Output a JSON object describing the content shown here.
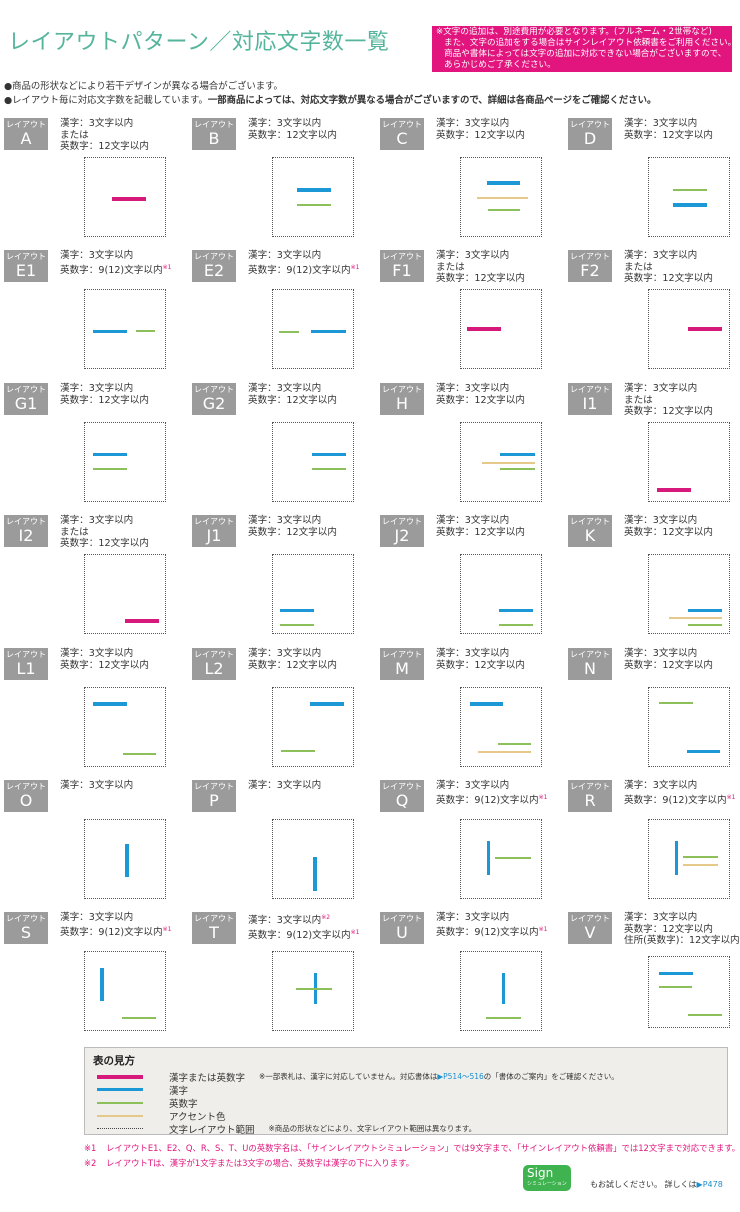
{
  "header": {
    "title": "レイアウトパターン／対応文字数一覧",
    "notice": [
      "※文字の追加は、別途費用が必要となります。(フルネーム・2世帯など)",
      "また、文字の追加をする場合はサインレイアウト依頼書をご利用ください。",
      "商品や書体によっては文字の追加に対応できない場合がございますので、",
      "あらかじめご了承ください。"
    ],
    "bullet1": "●商品の形状などにより若干デザインが異なる場合がございます。",
    "bullet2_a": "●レイアウト毎に対応文字数を記載しています。",
    "bullet2_b": "一部商品によっては、対応文字数が異なる場合がございますので、詳細は各商品ページをご確認ください。"
  },
  "layout_prefix": "レイアウト",
  "colors": {
    "kanji_or_alnum": "#d6197b",
    "kanji": "#1b98d5",
    "alnum": "#8cc05b",
    "accent": "#e6c98a",
    "label_bg": "#9b9b9b",
    "notice_bg": "#e1157d",
    "title": "#55b59c"
  },
  "layouts": [
    {
      "id": "A",
      "lines": [
        {
          "t": "漢字：3文字以内"
        },
        {
          "t": "または"
        },
        {
          "t": "英数字：12文字以内"
        }
      ]
    },
    {
      "id": "B",
      "lines": [
        {
          "t": "漢字：3文字以内"
        },
        {
          "t": "英数字：12文字以内"
        }
      ]
    },
    {
      "id": "C",
      "lines": [
        {
          "t": "漢字：3文字以内"
        },
        {
          "t": "英数字：12文字以内"
        }
      ]
    },
    {
      "id": "D",
      "lines": [
        {
          "t": "漢字：3文字以内"
        },
        {
          "t": "英数字：12文字以内"
        }
      ]
    },
    {
      "id": "E1",
      "lines": [
        {
          "t": "漢字：3文字以内"
        },
        {
          "t": "英数字：9(12)文字以内",
          "n": "※1"
        }
      ]
    },
    {
      "id": "E2",
      "lines": [
        {
          "t": "漢字：3文字以内"
        },
        {
          "t": "英数字：9(12)文字以内",
          "n": "※1"
        }
      ]
    },
    {
      "id": "F1",
      "lines": [
        {
          "t": "漢字：3文字以内"
        },
        {
          "t": "または"
        },
        {
          "t": "英数字：12文字以内"
        }
      ]
    },
    {
      "id": "F2",
      "lines": [
        {
          "t": "漢字：3文字以内"
        },
        {
          "t": "または"
        },
        {
          "t": "英数字：12文字以内"
        }
      ]
    },
    {
      "id": "G1",
      "lines": [
        {
          "t": "漢字：3文字以内"
        },
        {
          "t": "英数字：12文字以内"
        }
      ]
    },
    {
      "id": "G2",
      "lines": [
        {
          "t": "漢字：3文字以内"
        },
        {
          "t": "英数字：12文字以内"
        }
      ]
    },
    {
      "id": "H",
      "lines": [
        {
          "t": "漢字：3文字以内"
        },
        {
          "t": "英数字：12文字以内"
        }
      ]
    },
    {
      "id": "I1",
      "lines": [
        {
          "t": "漢字：3文字以内"
        },
        {
          "t": "または"
        },
        {
          "t": "英数字：12文字以内"
        }
      ]
    },
    {
      "id": "I2",
      "lines": [
        {
          "t": "漢字：3文字以内"
        },
        {
          "t": "または"
        },
        {
          "t": "英数字：12文字以内"
        }
      ]
    },
    {
      "id": "J1",
      "lines": [
        {
          "t": "漢字：3文字以内"
        },
        {
          "t": "英数字：12文字以内"
        }
      ]
    },
    {
      "id": "J2",
      "lines": [
        {
          "t": "漢字：3文字以内"
        },
        {
          "t": "英数字：12文字以内"
        }
      ]
    },
    {
      "id": "K",
      "lines": [
        {
          "t": "漢字：3文字以内"
        },
        {
          "t": "英数字：12文字以内"
        }
      ]
    },
    {
      "id": "L1",
      "lines": [
        {
          "t": "漢字：3文字以内"
        },
        {
          "t": "英数字：12文字以内"
        }
      ]
    },
    {
      "id": "L2",
      "lines": [
        {
          "t": "漢字：3文字以内"
        },
        {
          "t": "英数字：12文字以内"
        }
      ]
    },
    {
      "id": "M",
      "lines": [
        {
          "t": "漢字：3文字以内"
        },
        {
          "t": "英数字：12文字以内"
        }
      ]
    },
    {
      "id": "N",
      "lines": [
        {
          "t": "漢字：3文字以内"
        },
        {
          "t": "英数字：12文字以内"
        }
      ]
    },
    {
      "id": "O",
      "lines": [
        {
          "t": "漢字：3文字以内"
        }
      ]
    },
    {
      "id": "P",
      "lines": [
        {
          "t": "漢字：3文字以内"
        }
      ]
    },
    {
      "id": "Q",
      "lines": [
        {
          "t": "漢字：3文字以内"
        },
        {
          "t": "英数字：9(12)文字以内",
          "n": "※1"
        }
      ]
    },
    {
      "id": "R",
      "lines": [
        {
          "t": "漢字：3文字以内"
        },
        {
          "t": "英数字：9(12)文字以内",
          "n": "※1"
        }
      ]
    },
    {
      "id": "S",
      "lines": [
        {
          "t": "漢字：3文字以内"
        },
        {
          "t": "英数字：9(12)文字以内",
          "n": "※1"
        }
      ]
    },
    {
      "id": "T",
      "lines": [
        {
          "t": "漢字：3文字以内",
          "n": "※2"
        },
        {
          "t": "英数字：9(12)文字以内",
          "n": "※1"
        }
      ]
    },
    {
      "id": "U",
      "lines": [
        {
          "t": "漢字：3文字以内"
        },
        {
          "t": "英数字：9(12)文字以内",
          "n": "※1"
        }
      ]
    },
    {
      "id": "V",
      "lines": [
        {
          "t": "漢字：3文字以内"
        },
        {
          "t": "英数字：12文字以内"
        },
        {
          "t": "住所(英数字)：12文字以内"
        }
      ]
    }
  ],
  "legend": {
    "title": "表の見方",
    "items": [
      {
        "key": "kanji_or_alnum",
        "label": "漢字または英数字",
        "note": "※一部表札は、漢字に対応していません。対応書体は",
        "link": "▶P514～516",
        "note_end": "の「書体のご案内」をご確認ください。"
      },
      {
        "key": "kanji",
        "label": "漢字"
      },
      {
        "key": "alnum",
        "label": "英数字"
      },
      {
        "key": "accent",
        "label": "アクセント色"
      },
      {
        "key": "range",
        "label": "文字レイアウト範囲",
        "note": "※商品の形状などにより、文字レイアウト範囲は異なります。"
      }
    ]
  },
  "footnotes": [
    {
      "mark": "※1",
      "text": "レイアウトE1、E2、Q、R、S、T、Uの英数字名は、「サインレイアウトシミュレーション」では9文字まで、「サインレイアウト依頼書」では12文字まで対応できます。"
    },
    {
      "mark": "※2",
      "text": "レイアウトTは、漢字が1文字または3文字の場合、英数字は漢字の下に入ります。"
    }
  ],
  "sign": {
    "logo": "Sign",
    "logo_sub": "シミュレーション",
    "text": "もお試しください。 詳しくは",
    "link": "▶P478"
  }
}
